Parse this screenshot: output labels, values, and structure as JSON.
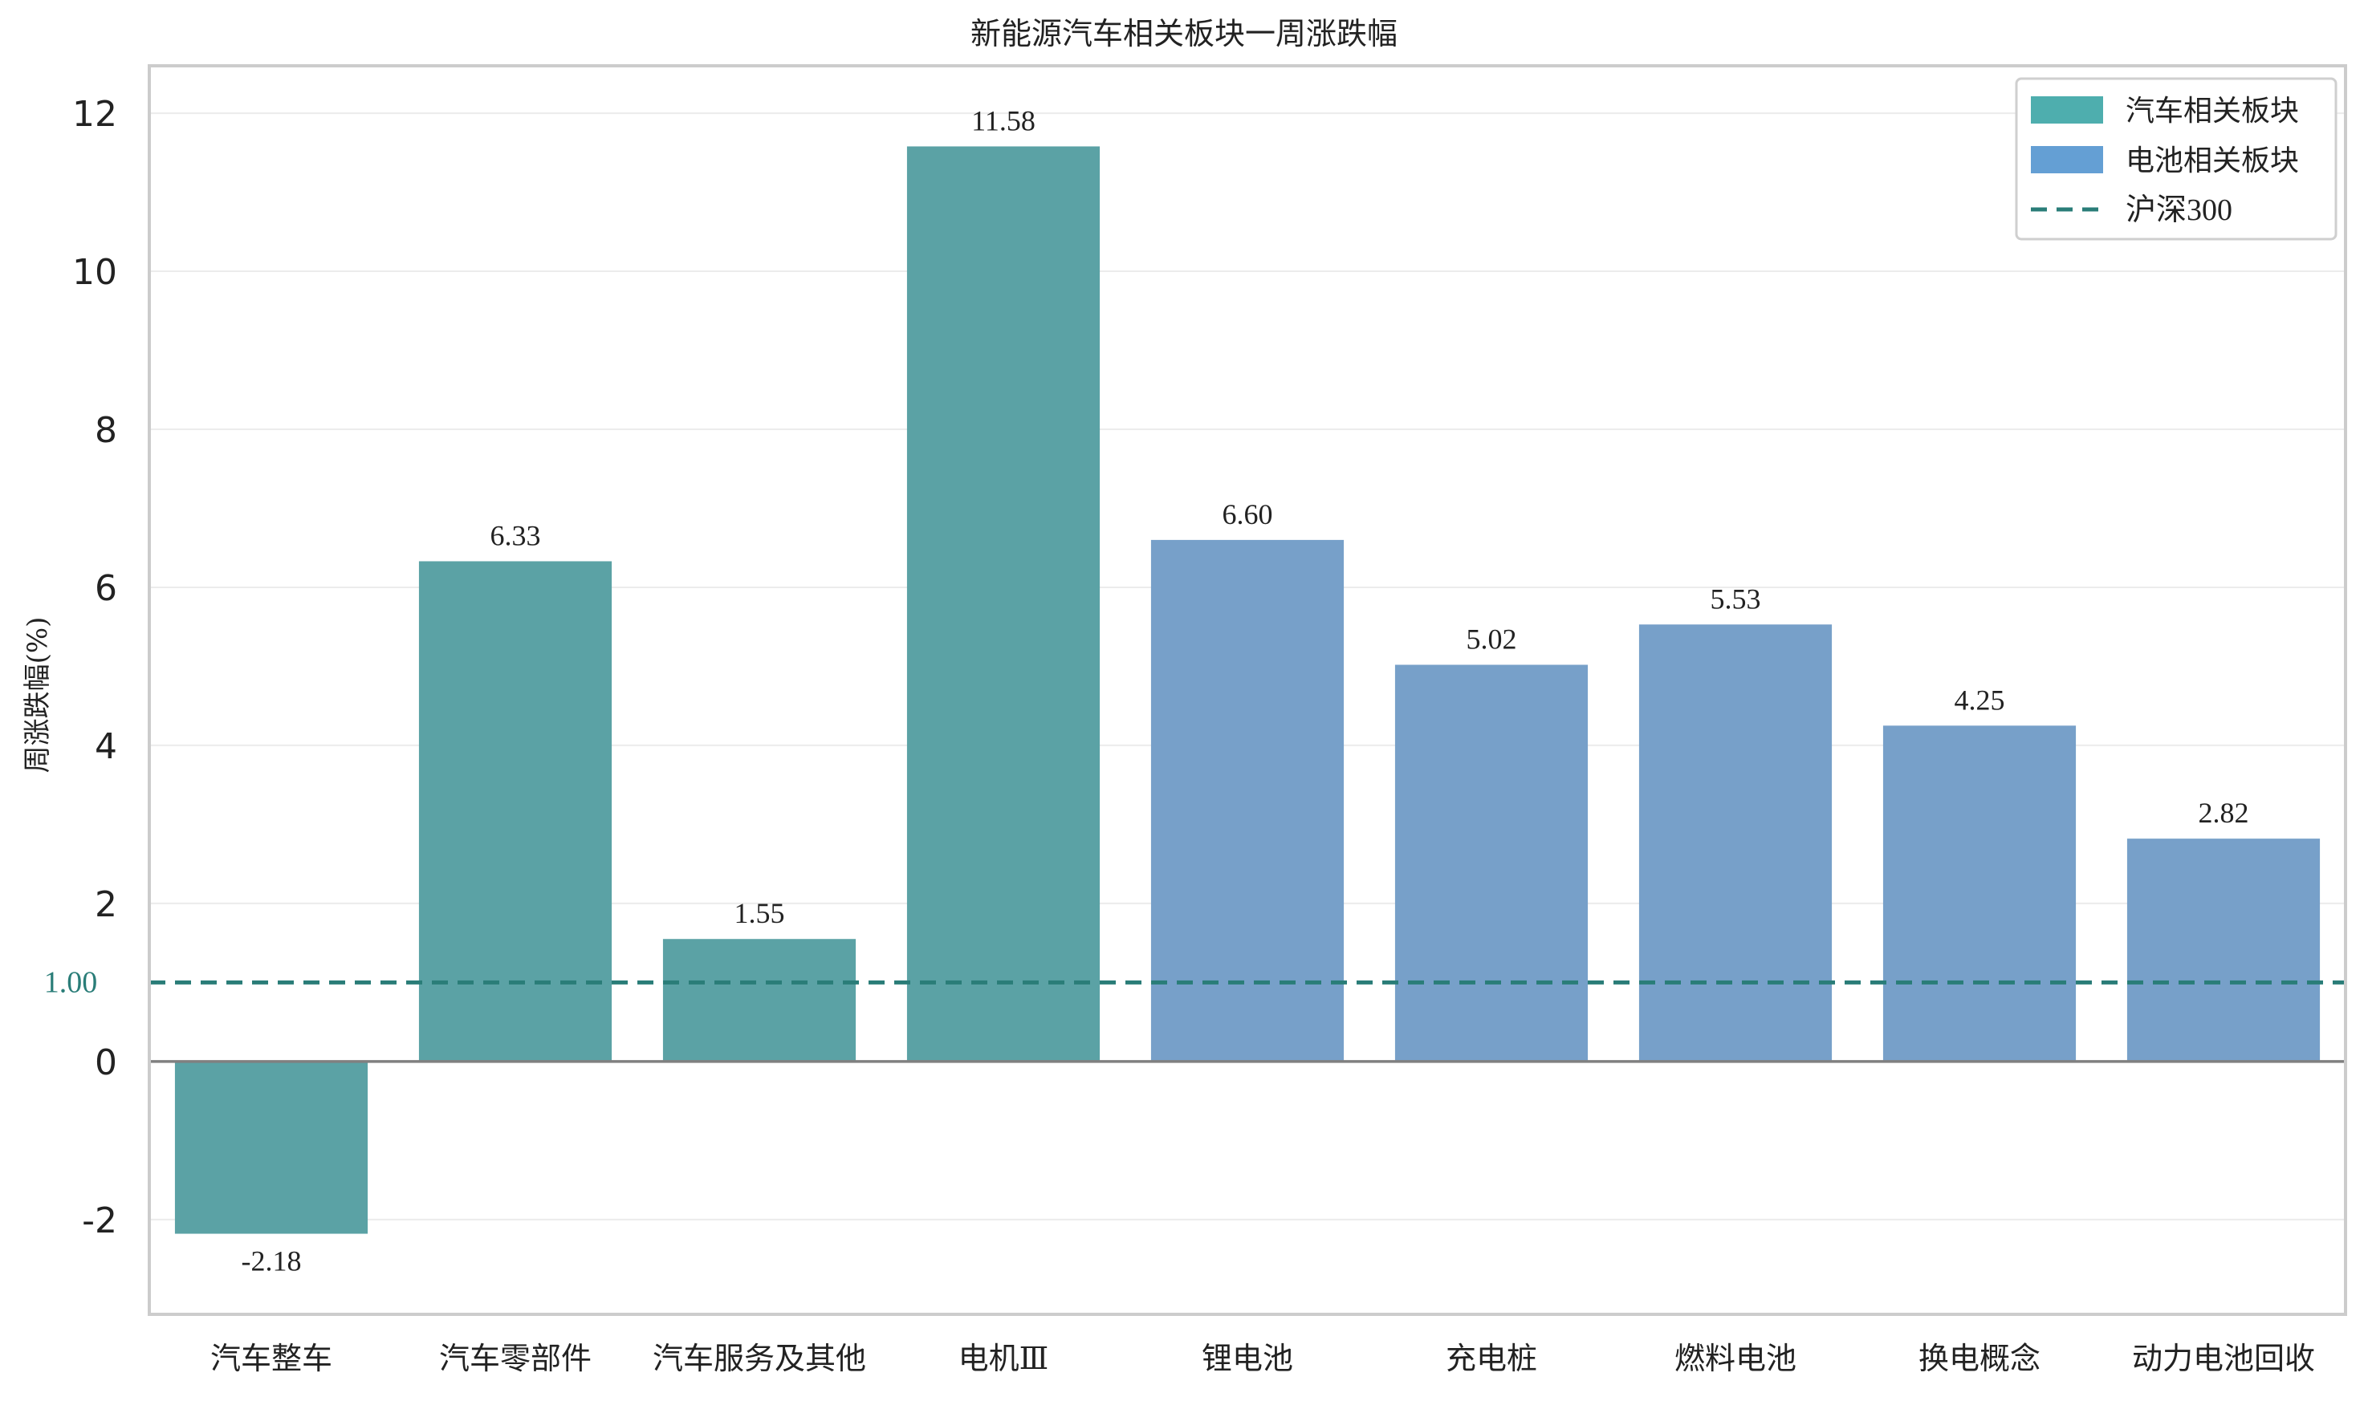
{
  "chart_data": {
    "type": "bar",
    "title": "新能源汽车相关板块一周涨跌幅",
    "ylabel": "周涨跌幅(%)",
    "xlabel": "",
    "ylim": [
      -3.2,
      12.6
    ],
    "yticks": [
      -2,
      0,
      2,
      4,
      6,
      8,
      10,
      12
    ],
    "grid": true,
    "legend_position": "top-right",
    "categories": [
      "汽车整车",
      "汽车零部件",
      "汽车服务及其他",
      "电机Ⅲ",
      "锂电池",
      "充电桩",
      "燃料电池",
      "换电概念",
      "动力电池回收"
    ],
    "values": [
      -2.18,
      6.33,
      1.55,
      11.58,
      6.6,
      5.02,
      5.53,
      4.25,
      2.82
    ],
    "value_labels": [
      "-2.18",
      "6.33",
      "1.55",
      "11.58",
      "6.60",
      "5.02",
      "5.53",
      "4.25",
      "2.82"
    ],
    "groups": [
      "auto",
      "auto",
      "auto",
      "auto",
      "battery",
      "battery",
      "battery",
      "battery",
      "battery"
    ],
    "colors": {
      "auto": "#5ba2a5",
      "battery": "#77a0c9",
      "legend_auto": "#4eaeae",
      "legend_battery": "#649fd4",
      "reference": "#2a7d78",
      "zero_line": "#808080",
      "grid": "#ececec",
      "frame": "#cccccc"
    },
    "reference_line": {
      "label": "沪深300",
      "value": 1.0,
      "value_label": "1.00"
    },
    "legend": [
      {
        "label": "汽车相关板块",
        "group": "auto",
        "kind": "patch"
      },
      {
        "label": "电池相关板块",
        "group": "battery",
        "kind": "patch"
      },
      {
        "label": "沪深300",
        "group": "reference",
        "kind": "line"
      }
    ]
  }
}
